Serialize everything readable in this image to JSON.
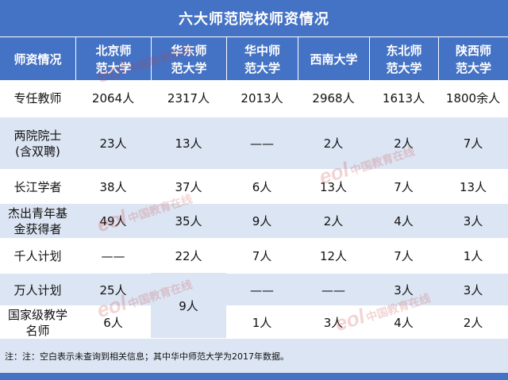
{
  "title": "六大师范院校师资情况",
  "columns": [
    "师资情况",
    "北京师范大学",
    "华东师范大学",
    "华中师范大学",
    "西南大学",
    "东北师范大学",
    "陕西师范大学"
  ],
  "header_lines": [
    [
      "师资情况"
    ],
    [
      "北京师",
      "范大学"
    ],
    [
      "华东师",
      "范大学"
    ],
    [
      "华中师",
      "范大学"
    ],
    [
      "西南大学"
    ],
    [
      "东北师",
      "范大学"
    ],
    [
      "陕西师",
      "范大学"
    ]
  ],
  "rows": [
    {
      "label": [
        "专任教师"
      ],
      "values": [
        "2064人",
        "2317人",
        "2013人",
        "2968人",
        "1613人",
        "1800余人"
      ]
    },
    {
      "label": [
        "两院院士",
        "(含双聘)"
      ],
      "values": [
        "23人",
        "13人",
        "——",
        "2人",
        "2人",
        "7人"
      ]
    },
    {
      "label": [
        "长江学者"
      ],
      "values": [
        "38人",
        "37人",
        "6人",
        "13人",
        "7人",
        "13人"
      ]
    },
    {
      "label": [
        "杰出青年基",
        "金获得者"
      ],
      "values": [
        "49人",
        "35人",
        "9人",
        "2人",
        "4人",
        "3人"
      ]
    },
    {
      "label": [
        "千人计划"
      ],
      "values": [
        "——",
        "22人",
        "7人",
        "12人",
        "7人",
        "1人"
      ]
    },
    {
      "label": [
        "万人计划"
      ],
      "values": [
        "25人",
        "",
        "——",
        "——",
        "3人",
        "3人"
      ]
    },
    {
      "label": [
        "国家级教学",
        "名师"
      ],
      "values": [
        "6人",
        "",
        "1人",
        "3人",
        "4人",
        "2人"
      ]
    }
  ],
  "merged_cell": "9人",
  "note": "注：注：空白表示未查询到相关信息；其中华中师范大学为2017年数据。",
  "watermark": {
    "logo": "eol",
    "text": "中国教育在线",
    "url": "www.eol.cn"
  },
  "colors": {
    "header": "#4472c4",
    "stripe": "#dce5f3",
    "watermark": "#c83c3c"
  }
}
